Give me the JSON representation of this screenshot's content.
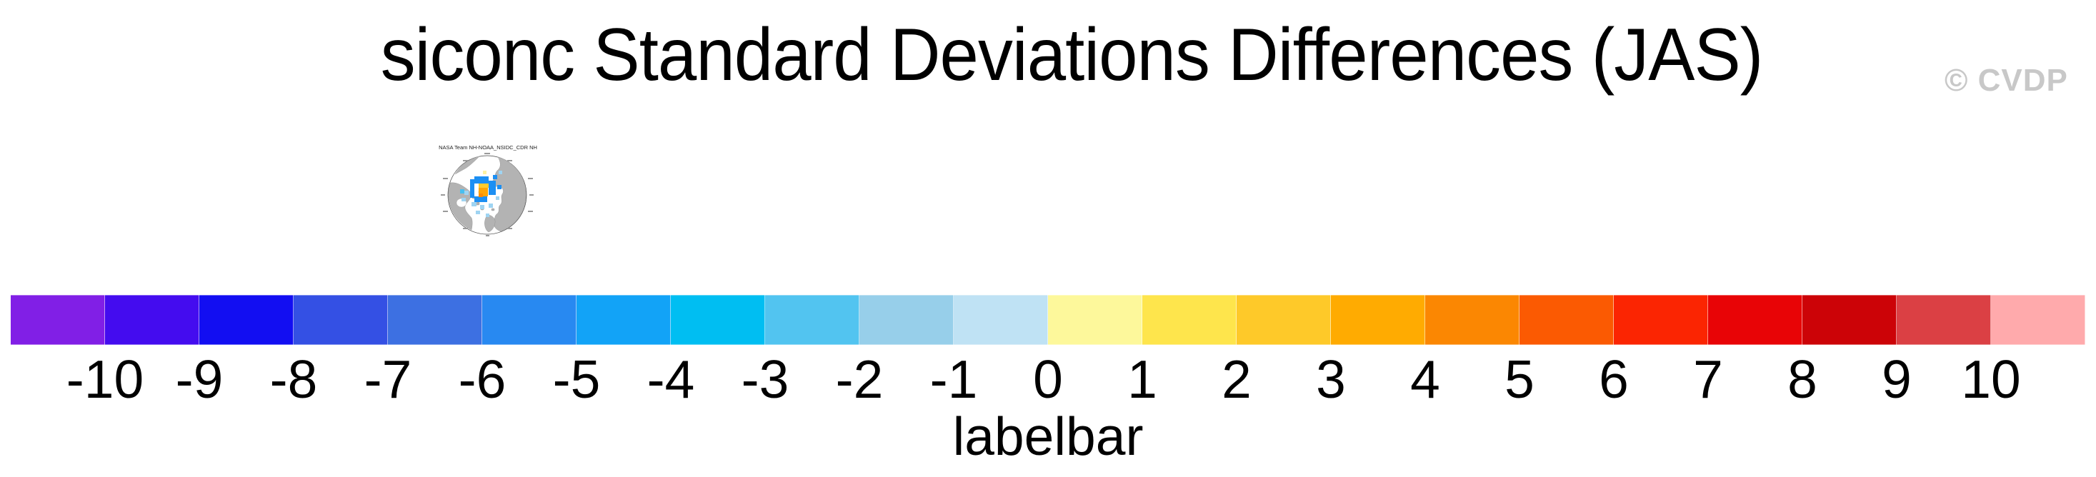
{
  "header": {
    "title": "siconc Standard Deviations Differences (JAS)",
    "watermark": "© CVDP"
  },
  "map_inset": {
    "title": "NASA Team NH-NOAA_NSIDC_CDR NH"
  },
  "colorbar": {
    "axis_label": "labelbar"
  },
  "chart_data": {
    "type": "colorbar",
    "title": "siconc Standard Deviations Differences (JAS)",
    "xlabel": "labelbar",
    "levels": [
      -10,
      -9,
      -8,
      -7,
      -6,
      -5,
      -4,
      -3,
      -2,
      -1,
      0,
      1,
      2,
      3,
      4,
      5,
      6,
      7,
      8,
      9,
      10
    ],
    "colors": [
      "#811FE6",
      "#440CEF",
      "#120EF2",
      "#3450E4",
      "#3D70E2",
      "#2889F1",
      "#12A3F7",
      "#00BEF2",
      "#52C4F0",
      "#97CFEA",
      "#BFE2F4",
      "#FDF89B",
      "#FEE54C",
      "#FEC929",
      "#FFAB01",
      "#FB8702",
      "#FB5A02",
      "#FB2502",
      "#E80406",
      "#CC0307",
      "#DB4044",
      "#FFAAAC"
    ],
    "legend_position": "bottom",
    "notes": "22 color boxes; 21 tick labels placed at box boundaries",
    "inset_map": {
      "title": "NASA Team NH-NOAA_NSIDC_CDR NH",
      "projection": "north-polar-stereographic",
      "anomaly_colors_used": [
        "#1C8FF3",
        "#9FD4F2",
        "#49BFEF",
        "#FECB2E",
        "#FFA405",
        "#FB8A07",
        "#FDF2A2"
      ]
    }
  }
}
